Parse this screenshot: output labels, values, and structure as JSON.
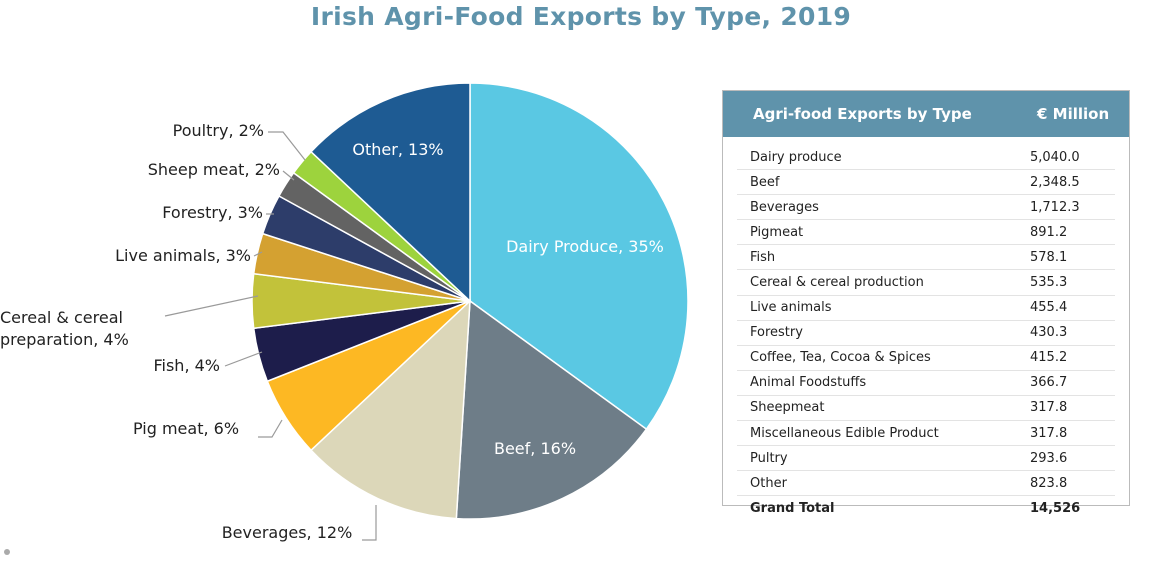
{
  "chart_data": [
    {
      "type": "pie",
      "title": "Irish Agri-Food Exports by Type, 2019",
      "slices": [
        {
          "label": "Dairy Produce, 35%",
          "value": 35,
          "color": "#5ac8e3"
        },
        {
          "label": "Beef, 16%",
          "value": 16,
          "color": "#6e7d88"
        },
        {
          "label": "Beverages, 12%",
          "value": 12,
          "color": "#dcd7b9"
        },
        {
          "label": "Pig meat, 6%",
          "value": 6,
          "color": "#fdb823"
        },
        {
          "label": "Fish, 4%",
          "value": 4,
          "color": "#1d1d4b"
        },
        {
          "label": "Cereal & cereal preparation, 4%",
          "value": 4,
          "color": "#c2c23a"
        },
        {
          "label": "Live animals, 3%",
          "value": 3,
          "color": "#d4a131"
        },
        {
          "label": "Forestry, 3%",
          "value": 3,
          "color": "#2d3d6a"
        },
        {
          "label": "Sheep meat, 2%",
          "value": 2,
          "color": "#636363"
        },
        {
          "label": "Poultry, 2%",
          "value": 2,
          "color": "#9dd33d"
        },
        {
          "label": "Other, 13%",
          "value": 13,
          "color": "#1e5b93"
        }
      ]
    },
    {
      "type": "table",
      "columns": [
        "Agri-food Exports by Type",
        "€ Million"
      ],
      "rows": [
        [
          "Dairy produce",
          "5,040.0"
        ],
        [
          "Beef",
          "2,348.5"
        ],
        [
          "Beverages",
          "1,712.3"
        ],
        [
          "Pigmeat",
          "891.2"
        ],
        [
          "Fish",
          "578.1"
        ],
        [
          "Cereal & cereal production",
          "535.3"
        ],
        [
          "Live animals",
          "455.4"
        ],
        [
          "Forestry",
          "430.3"
        ],
        [
          "Coffee, Tea, Cocoa & Spices",
          "415.2"
        ],
        [
          "Animal Foodstuffs",
          "366.7"
        ],
        [
          "Sheepmeat",
          "317.8"
        ],
        [
          "Miscellaneous Edible Product",
          "317.8"
        ],
        [
          "Pultry",
          "293.6"
        ],
        [
          "Other",
          "823.8"
        ]
      ],
      "total": [
        "Grand Total",
        "14,526"
      ],
      "header_color": "#5f93ab"
    }
  ]
}
